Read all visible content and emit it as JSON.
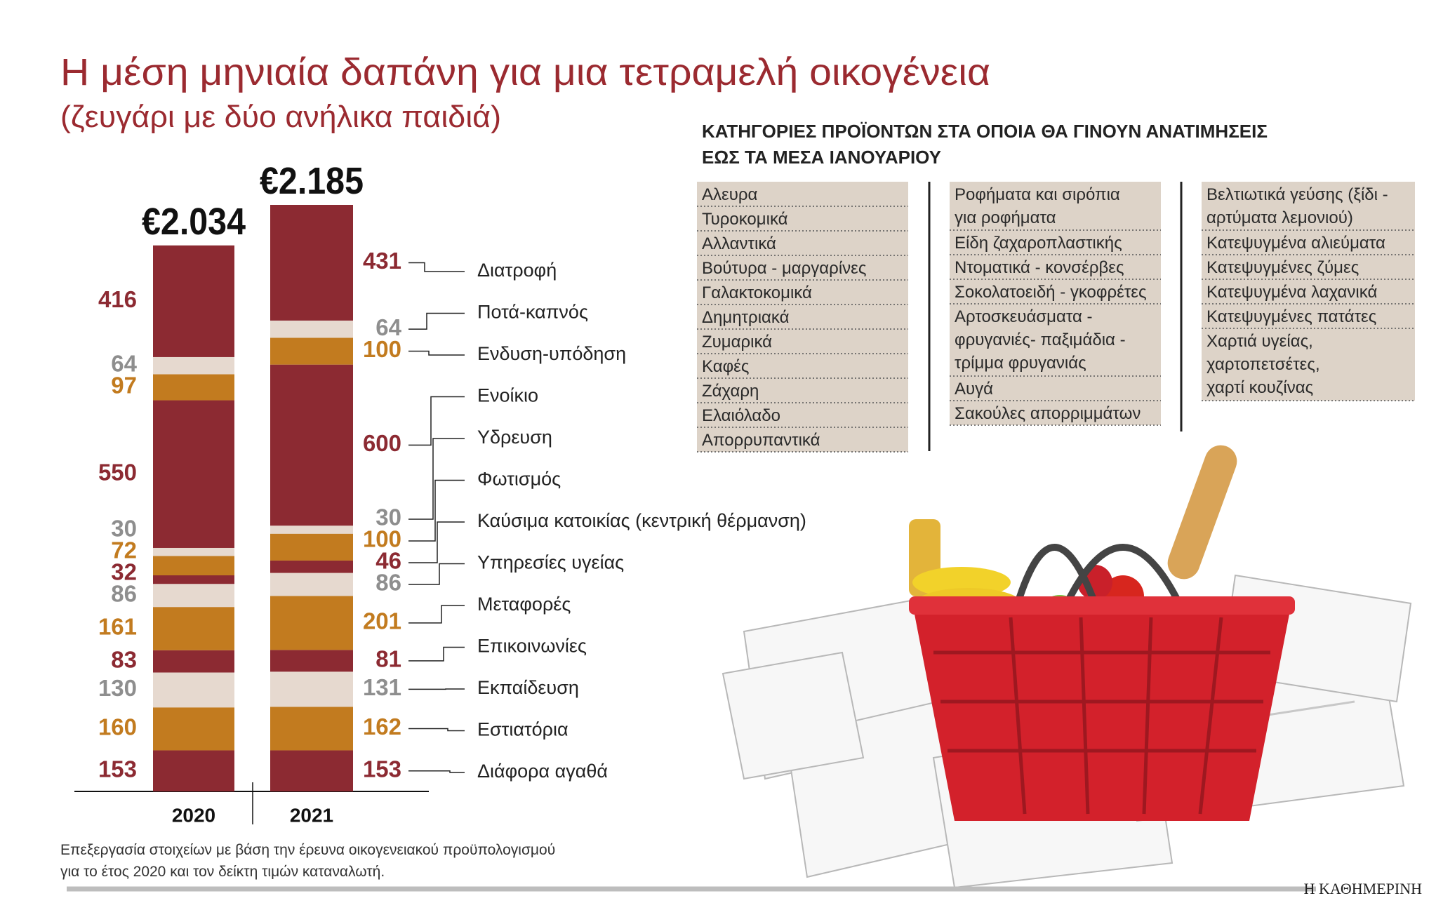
{
  "chart_data": {
    "type": "stacked_bar",
    "title": "Η μέση μηνιαία δαπάνη για μια τετραμελή οικογένεια",
    "subtitle": "(ζευγάρι με δύο ανήλικα παιδιά)",
    "categories": [
      "2020",
      "2021"
    ],
    "series": [
      {
        "name": "Διατροφή",
        "color": "#8c2a32",
        "label_color": "#8c2a32",
        "values": [
          416,
          431
        ]
      },
      {
        "name": "Ποτά-καπνός",
        "color": "#e6d9cf",
        "label_color": "#8e8e8e",
        "values": [
          64,
          64
        ]
      },
      {
        "name": "Ενδυση-υπόδηση",
        "color": "#c27b1f",
        "label_color": "#c27b1f",
        "values": [
          97,
          100
        ]
      },
      {
        "name": "Ενοίκιο",
        "color": "#8c2a32",
        "label_color": "#8c2a32",
        "values": [
          550,
          600
        ]
      },
      {
        "name": "Υδρευση",
        "color": "#e6d9cf",
        "label_color": "#8e8e8e",
        "values": [
          30,
          30
        ]
      },
      {
        "name": "Φωτισμός",
        "color": "#c27b1f",
        "label_color": "#c27b1f",
        "values": [
          72,
          100
        ]
      },
      {
        "name": "Καύσιμα κατοικίας (κεντρική θέρμανση)",
        "color": "#8c2a32",
        "label_color": "#8c2a32",
        "values": [
          32,
          46
        ]
      },
      {
        "name": "Υπηρεσίες υγείας",
        "color": "#e6d9cf",
        "label_color": "#8e8e8e",
        "values": [
          86,
          86
        ]
      },
      {
        "name": "Μεταφορές",
        "color": "#c27b1f",
        "label_color": "#c27b1f",
        "values": [
          161,
          201
        ]
      },
      {
        "name": "Επικοινωνίες",
        "color": "#8c2a32",
        "label_color": "#8c2a32",
        "values": [
          83,
          81
        ]
      },
      {
        "name": "Εκπαίδευση",
        "color": "#e6d9cf",
        "label_color": "#8e8e8e",
        "values": [
          130,
          131
        ]
      },
      {
        "name": "Εστιατόρια",
        "color": "#c27b1f",
        "label_color": "#c27b1f",
        "values": [
          160,
          162
        ]
      },
      {
        "name": "Διάφορα αγαθά",
        "color": "#8c2a32",
        "label_color": "#8c2a32",
        "values": [
          153,
          153
        ]
      }
    ],
    "totals": {
      "values": [
        2034,
        2185
      ],
      "value_labels": [
        "€2.034",
        "€2.185"
      ]
    }
  },
  "price_increases": {
    "title_lines": [
      "ΚΑΤΗΓΟΡΙΕΣ ΠΡΟΪΟΝΤΩΝ ΣΤΑ ΟΠΟΙΑ ΘΑ ΓΙΝΟΥΝ ΑΝΑΤΙΜΗΣΕΙΣ",
      "ΕΩΣ ΤΑ ΜΕΣΑ ΙΑΝΟΥΑΡΙΟΥ"
    ],
    "columns": [
      [
        [
          "Αλευρα"
        ],
        [
          "Τυροκομικά"
        ],
        [
          "Αλλαντικά"
        ],
        [
          "Βούτυρα - μαργαρίνες"
        ],
        [
          "Γαλακτοκομικά"
        ],
        [
          "Δημητριακά"
        ],
        [
          "Ζυμαρικά"
        ],
        [
          "Καφές"
        ],
        [
          "Ζάχαρη"
        ],
        [
          "Ελαιόλαδο"
        ],
        [
          "Απορρυπαντικά"
        ]
      ],
      [
        [
          "Ροφήματα και σιρόπια",
          "για ροφήματα"
        ],
        [
          "Είδη ζαχαροπλαστικής"
        ],
        [
          "Ντοματικά - κονσέρβες"
        ],
        [
          "Σοκολατοειδή - γκοφρέτες"
        ],
        [
          "Αρτοσκευάσματα -",
          "φρυγανιές- παξιμάδια -",
          "τρίμμα φρυγανιάς"
        ],
        [
          "Αυγά"
        ],
        [
          "Σακούλες απορριμμάτων"
        ]
      ],
      [
        [
          "Βελτιωτικά γεύσης (ξίδι -",
          "αρτύματα λεμονιού)"
        ],
        [
          "Κατεψυγμένα αλιεύματα"
        ],
        [
          "Κατεψυγμένες ζύμες"
        ],
        [
          "Κατεψυγμένα λαχανικά"
        ],
        [
          "Κατεψυγμένες πατάτες"
        ],
        [
          "Χαρτιά υγείας,",
          "χαρτοπετσέτες,",
          "χαρτί κουζίνας"
        ]
      ]
    ]
  },
  "footer": {
    "note_lines": [
      "Επεξεργασία στοιχείων με βάση την έρευνα οικογενειακού προϋπολογισμού",
      "για το έτος 2020 και τον δείκτη τιμών καταναλωτή."
    ],
    "source": "Η ΚΑΘΗΜΕΡΙΝΗ"
  }
}
